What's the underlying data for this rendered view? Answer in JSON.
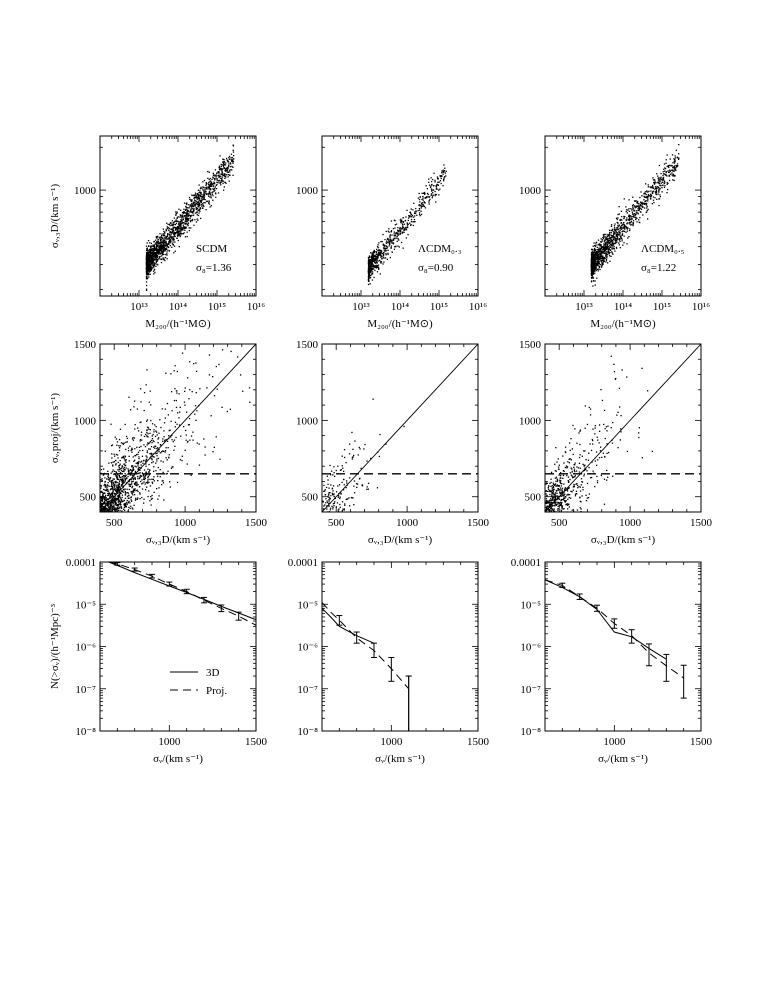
{
  "chart_data": [
    {
      "type": "scatter",
      "panel": "top-left",
      "xlabel": "M₂₀₀/(h⁻¹M⊙)",
      "ylabel": "σᵥ,₃D/(km s⁻¹)",
      "xscale": "log",
      "yscale": "log",
      "xlim": [
        1000000000000.0,
        1e+16
      ],
      "ylim": [
        180,
        2400
      ],
      "xticks": [
        10000000000000.0,
        100000000000000.0,
        1000000000000000.0,
        1e+16
      ],
      "xtick_labels": [
        "10¹³",
        "10¹⁴",
        "10¹⁵",
        "10¹⁶"
      ],
      "yticks": [
        1000
      ],
      "ytick_labels": [
        "1000"
      ],
      "annotation": [
        "SCDM",
        "σ₈=1.36"
      ],
      "cloud": {
        "m_min": 15000000000000.0,
        "m_max": 2600000000000000.0,
        "sigma_at_1e14": 560,
        "slope": 0.333,
        "scatter": 0.05,
        "count": 1600
      }
    },
    {
      "type": "scatter",
      "panel": "top-middle",
      "xlabel": "M₂₀₀/(h⁻¹M⊙)",
      "ylabel": "",
      "xscale": "log",
      "yscale": "log",
      "xlim": [
        1000000000000.0,
        1e+16
      ],
      "ylim": [
        180,
        2400
      ],
      "xticks": [
        10000000000000.0,
        100000000000000.0,
        1000000000000000.0,
        1e+16
      ],
      "xtick_labels": [
        "10¹³",
        "10¹⁴",
        "10¹⁵",
        "10¹⁶"
      ],
      "yticks": [
        1000
      ],
      "ytick_labels": [
        "1000"
      ],
      "annotation": [
        "ΛCDM₀.₃",
        "σ₈=0.90"
      ],
      "cloud": {
        "m_min": 15000000000000.0,
        "m_max": 1500000000000000.0,
        "sigma_at_1e14": 530,
        "slope": 0.333,
        "scatter": 0.045,
        "count": 700
      }
    },
    {
      "type": "scatter",
      "panel": "top-right",
      "xlabel": "M₂₀₀/(h⁻¹M⊙)",
      "ylabel": "",
      "xscale": "log",
      "yscale": "log",
      "xlim": [
        1000000000000.0,
        1e+16
      ],
      "ylim": [
        180,
        2400
      ],
      "xticks": [
        10000000000000.0,
        100000000000000.0,
        1000000000000000.0,
        1e+16
      ],
      "xtick_labels": [
        "10¹³",
        "10¹⁴",
        "10¹⁵",
        "10¹⁶"
      ],
      "yticks": [
        1000
      ],
      "ytick_labels": [
        "1000"
      ],
      "annotation": [
        "ΛCDM₀.₅",
        "σ₈=1.22"
      ],
      "cloud": {
        "m_min": 15000000000000.0,
        "m_max": 2600000000000000.0,
        "sigma_at_1e14": 560,
        "slope": 0.333,
        "scatter": 0.05,
        "count": 1300
      }
    },
    {
      "type": "scatter",
      "panel": "middle-left",
      "xlabel": "σᵥ,₃D/(km s⁻¹)",
      "ylabel": "σᵥ,proj/(km s⁻¹)",
      "xlim": [
        400,
        1500
      ],
      "ylim": [
        400,
        1500
      ],
      "xticks": [
        500,
        1000,
        1500
      ],
      "yticks": [
        500,
        1000,
        1500
      ],
      "lines": [
        {
          "style": "solid",
          "x": [
            400,
            1500
          ],
          "y": [
            400,
            1500
          ]
        },
        {
          "style": "dashed",
          "x": [
            400,
            1500
          ],
          "y": [
            650,
            650
          ]
        }
      ],
      "cloud": {
        "count": 1400,
        "x_scale": 200,
        "scatter": 0.22
      }
    },
    {
      "type": "scatter",
      "panel": "middle-middle",
      "xlabel": "σᵥ,₃D/(km s⁻¹)",
      "ylabel": "",
      "xlim": [
        400,
        1500
      ],
      "ylim": [
        400,
        1500
      ],
      "xticks": [
        500,
        1000,
        1500
      ],
      "yticks": [
        500,
        1000,
        1500
      ],
      "lines": [
        {
          "style": "solid",
          "x": [
            400,
            1500
          ],
          "y": [
            400,
            1500
          ]
        },
        {
          "style": "dashed",
          "x": [
            400,
            1500
          ],
          "y": [
            650,
            650
          ]
        }
      ],
      "cloud": {
        "count": 220,
        "x_scale": 110,
        "scatter": 0.2
      }
    },
    {
      "type": "scatter",
      "panel": "middle-right",
      "xlabel": "σᵥ,₃D/(km s⁻¹)",
      "ylabel": "",
      "xlim": [
        400,
        1500
      ],
      "ylim": [
        400,
        1500
      ],
      "xticks": [
        500,
        1000,
        1500
      ],
      "yticks": [
        500,
        1000,
        1500
      ],
      "lines": [
        {
          "style": "solid",
          "x": [
            400,
            1500
          ],
          "y": [
            400,
            1500
          ]
        },
        {
          "style": "dashed",
          "x": [
            400,
            1500
          ],
          "y": [
            650,
            650
          ]
        }
      ],
      "cloud": {
        "count": 650,
        "x_scale": 160,
        "scatter": 0.2
      }
    },
    {
      "type": "line",
      "panel": "bottom-left",
      "xlabel": "σᵥ/(km s⁻¹)",
      "ylabel": "N(>σᵥ)/(h⁻¹Mpc)⁻³",
      "yscale": "log",
      "xlim": [
        600,
        1500
      ],
      "ylim": [
        1e-08,
        0.0001
      ],
      "xticks": [
        1000,
        1500
      ],
      "yticks": [
        0.0001,
        1e-05,
        1e-06,
        1e-07,
        1e-08
      ],
      "ytick_labels": [
        "0.0001",
        "10⁻⁵",
        "10⁻⁶",
        "10⁻⁷",
        "10⁻⁸"
      ],
      "series": [
        {
          "name": "3D",
          "style": "solid",
          "x": [
            650,
            700,
            800,
            900,
            1000,
            1100,
            1200,
            1300,
            1400,
            1500
          ],
          "y": [
            0.0001,
            8.3e-05,
            5.6e-05,
            3.9e-05,
            2.7e-05,
            1.9e-05,
            1.3e-05,
            8.9e-06,
            6.2e-06,
            4.3e-06
          ]
        },
        {
          "name": "Proj.",
          "style": "dashed",
          "x": [
            650,
            700,
            800,
            900,
            1000,
            1100,
            1200,
            1300,
            1400,
            1500
          ],
          "y": [
            0.0001,
            9e-05,
            6.6e-05,
            4.6e-05,
            3e-05,
            2e-05,
            1.25e-05,
            8e-06,
            5.2e-06,
            3.2e-06
          ],
          "yerr_low": [
            0,
            6e-06,
            5e-06,
            4e-06,
            3e-06,
            2.2e-06,
            1.7e-06,
            1.3e-06,
            1e-06,
            0
          ],
          "yerr_high": [
            0,
            7e-06,
            6e-06,
            5e-06,
            3.5e-06,
            2.6e-06,
            2e-06,
            1.6e-06,
            1.3e-06,
            0
          ]
        }
      ],
      "legend": {
        "position": "lower-left-center",
        "entries": [
          "3D",
          "Proj."
        ]
      }
    },
    {
      "type": "line",
      "panel": "bottom-middle",
      "xlabel": "σᵥ/(km s⁻¹)",
      "ylabel": "",
      "yscale": "log",
      "xlim": [
        600,
        1500
      ],
      "ylim": [
        1e-08,
        0.0001
      ],
      "xticks": [
        1000,
        1500
      ],
      "yticks": [
        0.0001,
        1e-05,
        1e-06,
        1e-07,
        1e-08
      ],
      "ytick_labels": [
        "0.0001",
        "10⁻⁵",
        "10⁻⁶",
        "10⁻⁷",
        "10⁻⁸"
      ],
      "series": [
        {
          "name": "3D",
          "style": "solid",
          "x": [
            600,
            650,
            700,
            800,
            900
          ],
          "y": [
            8e-06,
            5e-06,
            3e-06,
            1.8e-06,
            1.2e-06
          ]
        },
        {
          "name": "Proj.",
          "style": "dashed",
          "x": [
            600,
            650,
            700,
            800,
            900,
            1000,
            1100
          ],
          "y": [
            1.1e-05,
            6.5e-06,
            4.2e-06,
            1.6e-06,
            8e-07,
            3e-07,
            1e-07
          ],
          "yerr_low": [
            0,
            0,
            1e-06,
            4e-07,
            2.5e-07,
            1.5e-07,
            1e-07
          ],
          "yerr_high": [
            0,
            0,
            1.2e-06,
            6e-07,
            4e-07,
            2.5e-07,
            1e-07
          ]
        }
      ],
      "extra_marks": [
        {
          "x": 1100,
          "from": 1e-08,
          "to": 2e-07
        }
      ]
    },
    {
      "type": "line",
      "panel": "bottom-right",
      "xlabel": "σᵥ/(km s⁻¹)",
      "ylabel": "",
      "yscale": "log",
      "xlim": [
        600,
        1500
      ],
      "ylim": [
        1e-08,
        0.0001
      ],
      "xticks": [
        1000,
        1500
      ],
      "yticks": [
        0.0001,
        1e-05,
        1e-06,
        1e-07,
        1e-08
      ],
      "ytick_labels": [
        "0.0001",
        "10⁻⁵",
        "10⁻⁶",
        "10⁻⁷",
        "10⁻⁸"
      ],
      "series": [
        {
          "name": "3D",
          "style": "solid",
          "x": [
            600,
            700,
            800,
            900,
            1000,
            1100,
            1200,
            1300
          ],
          "y": [
            3.8e-05,
            2.5e-05,
            1.5e-05,
            7.5e-06,
            2.2e-06,
            1.7e-06,
            9e-07,
            5e-07
          ]
        },
        {
          "name": "Proj.",
          "style": "dashed",
          "x": [
            600,
            700,
            800,
            900,
            1000,
            1100,
            1200,
            1300,
            1400
          ],
          "y": [
            3.8e-05,
            2.8e-05,
            1.5e-05,
            8e-06,
            3.5e-06,
            1.8e-06,
            7e-07,
            3.5e-07,
            1.8e-07
          ],
          "yerr_low": [
            0,
            3e-06,
            2e-06,
            1.2e-06,
            8e-07,
            6e-07,
            3.5e-07,
            2e-07,
            1.2e-07
          ],
          "yerr_high": [
            0,
            3.5e-06,
            2.5e-06,
            1.5e-06,
            1e-06,
            7e-07,
            4.5e-07,
            3e-07,
            1.8e-07
          ]
        }
      ]
    }
  ]
}
